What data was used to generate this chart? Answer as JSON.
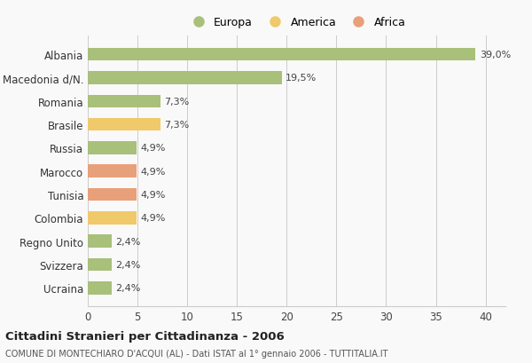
{
  "countries": [
    "Albania",
    "Macedonia d/N.",
    "Romania",
    "Brasile",
    "Russia",
    "Marocco",
    "Tunisia",
    "Colombia",
    "Regno Unito",
    "Svizzera",
    "Ucraina"
  ],
  "values": [
    39.0,
    19.5,
    7.3,
    7.3,
    4.9,
    4.9,
    4.9,
    4.9,
    2.4,
    2.4,
    2.4
  ],
  "labels": [
    "39,0%",
    "19,5%",
    "7,3%",
    "7,3%",
    "4,9%",
    "4,9%",
    "4,9%",
    "4,9%",
    "2,4%",
    "2,4%",
    "2,4%"
  ],
  "colors": [
    "#a8c07a",
    "#a8c07a",
    "#a8c07a",
    "#f0c96a",
    "#a8c07a",
    "#e8a07a",
    "#e8a07a",
    "#f0c96a",
    "#a8c07a",
    "#a8c07a",
    "#a8c07a"
  ],
  "legend": [
    {
      "label": "Europa",
      "color": "#a8c07a"
    },
    {
      "label": "America",
      "color": "#f0c96a"
    },
    {
      "label": "Africa",
      "color": "#e8a07a"
    }
  ],
  "xlim": [
    0,
    42
  ],
  "xticks": [
    0,
    5,
    10,
    15,
    20,
    25,
    30,
    35,
    40
  ],
  "title": "Cittadini Stranieri per Cittadinanza - 2006",
  "subtitle": "COMUNE DI MONTECHIARO D'ACQUI (AL) - Dati ISTAT al 1° gennaio 2006 - TUTTITALIA.IT",
  "background_color": "#f9f9f9",
  "grid_color": "#cccccc",
  "bar_height": 0.55,
  "label_fontsize": 8.0,
  "ytick_fontsize": 8.5,
  "xtick_fontsize": 8.5,
  "title_fontsize": 9.5,
  "subtitle_fontsize": 7.0,
  "legend_fontsize": 9.0
}
